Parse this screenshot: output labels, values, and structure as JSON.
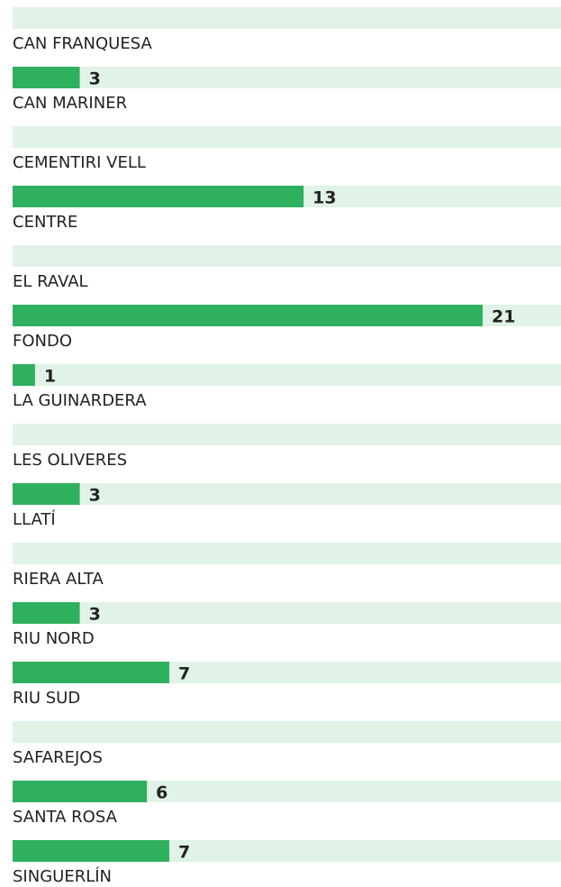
{
  "chart_data": {
    "type": "bar",
    "categories": [
      "CAN FRANQUESA",
      "CAN MARINER",
      "CEMENTIRI VELL",
      "CENTRE",
      "EL RAVAL",
      "FONDO",
      "LA GUINARDERA",
      "LES OLIVERES",
      "LLATÍ",
      "RIERA ALTA",
      "RIU NORD",
      "RIU SUD",
      "SAFAREJOS",
      "SANTA ROSA",
      "SINGUERLÍN"
    ],
    "values": [
      0,
      3,
      0,
      13,
      0,
      21,
      1,
      0,
      3,
      0,
      3,
      7,
      0,
      6,
      7
    ],
    "color": "#2fb05e",
    "track_color": "#e0f3e6",
    "xlim": [
      0,
      24.5
    ]
  }
}
